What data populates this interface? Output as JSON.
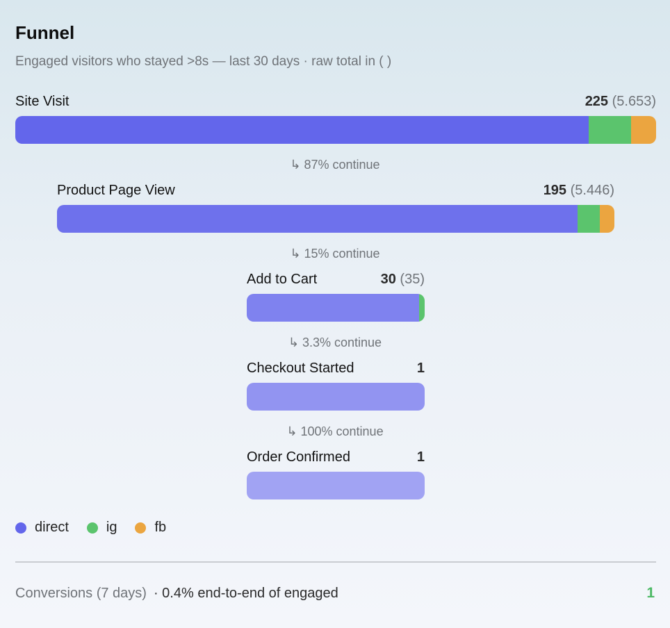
{
  "header": {
    "title": "Funnel",
    "subtitle": "Engaged visitors who stayed >8s — last 30 days · raw total in ( )"
  },
  "colors": {
    "direct": "#6366eb",
    "ig": "#5bc46d",
    "fb": "#eba540"
  },
  "chart_data": {
    "type": "bar",
    "orientation": "horizontal-funnel",
    "title": "Funnel",
    "stages": [
      {
        "label": "Site Visit",
        "value_text": "225",
        "raw_text": "(5.653)",
        "value": 225,
        "raw": 5653,
        "segments": {
          "direct": 0.895,
          "ig": 0.066,
          "fb": 0.039
        }
      },
      {
        "label": "Product Page View",
        "value_text": "195",
        "raw_text": "(5.446)",
        "value": 195,
        "raw": 5446,
        "segments": {
          "direct": 0.934,
          "ig": 0.04,
          "fb": 0.026
        }
      },
      {
        "label": "Add to Cart",
        "value_text": "30",
        "raw_text": "(35)",
        "value": 30,
        "raw": 35,
        "segments": {
          "direct": 0.967,
          "ig": 0.033,
          "fb": 0
        }
      },
      {
        "label": "Checkout Started",
        "value_text": "1",
        "raw_text": "",
        "value": 1,
        "raw": null,
        "segments": {
          "direct": 1,
          "ig": 0,
          "fb": 0
        }
      },
      {
        "label": "Order Confirmed",
        "value_text": "1",
        "raw_text": "",
        "value": 1,
        "raw": null,
        "segments": {
          "direct": 1,
          "ig": 0,
          "fb": 0
        }
      }
    ],
    "conversions": [
      "↳ 87% continue",
      "↳ 15% continue",
      "↳ 3.3% continue",
      "↳ 100% continue"
    ],
    "legend": [
      "direct",
      "ig",
      "fb"
    ],
    "legend_placement": "bottom-left"
  },
  "footer": {
    "label": "Conversions (7 days)",
    "detail": "· 0.4% end-to-end of engaged",
    "value": "1"
  }
}
